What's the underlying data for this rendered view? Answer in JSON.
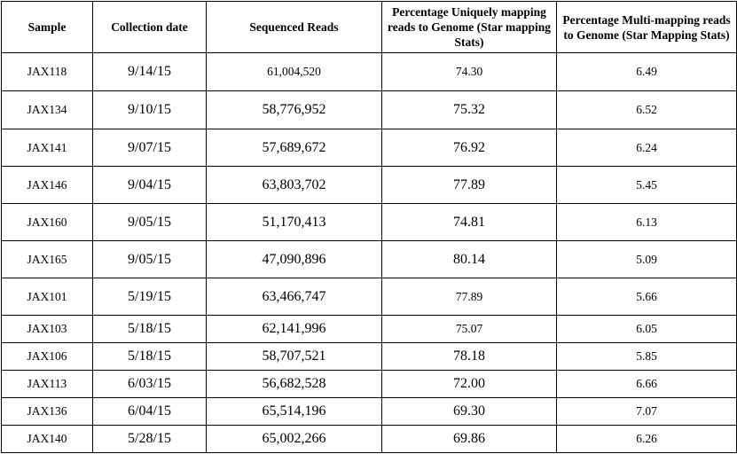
{
  "table": {
    "headers": [
      "Sample",
      "Collection date",
      "Sequenced Reads",
      "Percentage Uniquely mapping reads to Genome (Star mapping Stats)",
      "Percentage Multi-mapping reads to Genome (Star Mapping Stats)"
    ],
    "rows": [
      [
        "JAX118",
        "9/14/15",
        "61,004,520",
        "74.30",
        "6.49"
      ],
      [
        "JAX134",
        "9/10/15",
        "58,776,952",
        "75.32",
        "6.52"
      ],
      [
        "JAX141",
        "9/07/15",
        "57,689,672",
        "76.92",
        "6.24"
      ],
      [
        "JAX146",
        "9/04/15",
        "63,803,702",
        "77.89",
        "5.45"
      ],
      [
        "JAX160",
        "9/05/15",
        "51,170,413",
        "74.81",
        "6.13"
      ],
      [
        "JAX165",
        "9/05/15",
        "47,090,896",
        "80.14",
        "5.09"
      ],
      [
        "JAX101",
        "5/19/15",
        "63,466,747",
        "77.89",
        "5.66"
      ],
      [
        "JAX103",
        "5/18/15",
        "62,141,996",
        "75.07",
        "6.05"
      ],
      [
        "JAX106",
        "5/18/15",
        "58,707,521",
        "78.18",
        "5.85"
      ],
      [
        "JAX113",
        "6/03/15",
        "56,682,528",
        "72.00",
        "6.66"
      ],
      [
        "JAX136",
        "6/04/15",
        "65,514,196",
        "69.30",
        "7.07"
      ],
      [
        "JAX140",
        "5/28/15",
        "65,002,266",
        "69.86",
        "6.26"
      ]
    ]
  }
}
